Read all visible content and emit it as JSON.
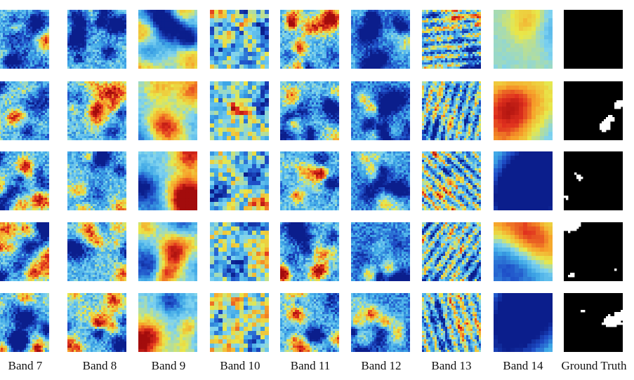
{
  "figure": {
    "columns": [
      {
        "label": "Band 7",
        "type": "heatmap",
        "texture": "fine"
      },
      {
        "label": "Band 8",
        "type": "heatmap",
        "texture": "fine"
      },
      {
        "label": "Band 9",
        "type": "heatmap",
        "texture": "smooth"
      },
      {
        "label": "Band 10",
        "type": "heatmap",
        "texture": "blocky"
      },
      {
        "label": "Band 11",
        "type": "heatmap",
        "texture": "fine"
      },
      {
        "label": "Band 12",
        "type": "heatmap",
        "texture": "fine-dark"
      },
      {
        "label": "Band 13",
        "type": "heatmap",
        "texture": "streaky"
      },
      {
        "label": "Band 14",
        "type": "heatmap",
        "texture": "very-smooth"
      },
      {
        "label": "Ground Truth",
        "type": "mask",
        "texture": "binary"
      }
    ],
    "rows": 5,
    "colormap": [
      "#0b1e8c",
      "#1f4fc8",
      "#3da6e6",
      "#7fd3f0",
      "#e8e84a",
      "#f7a12a",
      "#e0301e",
      "#a30c0c"
    ],
    "mask_colors": {
      "foreground": "#ffffff",
      "background": "#000000"
    }
  }
}
